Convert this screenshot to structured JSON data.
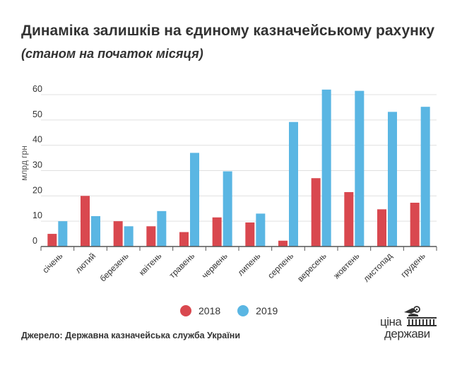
{
  "title": "Динаміка залишків на єдиному казначейському рахунку",
  "subtitle": "(станом на початок місяця)",
  "source": "Джерело: Державна казначейська служба України",
  "logo": {
    "line1": "ціна",
    "line2": "держави"
  },
  "colors": {
    "s2018": "#d9484f",
    "s2019": "#5ab6e3",
    "grid": "#e0e0e0",
    "axis": "#555555"
  },
  "chart_data": {
    "type": "bar",
    "title": "Динаміка залишків на єдиному казначейському рахунку",
    "subtitle": "(станом на початок місяця)",
    "ylabel": "млрд грн",
    "xlabel": "",
    "ylim": [
      0,
      60
    ],
    "yticks": [
      0,
      10,
      20,
      30,
      40,
      50,
      60
    ],
    "grid": true,
    "legend_position": "bottom",
    "categories": [
      "січень",
      "лютий",
      "березень",
      "квітень",
      "травень",
      "червень",
      "липень",
      "серпень",
      "вересень",
      "жовтень",
      "листопад",
      "грудень"
    ],
    "series": [
      {
        "name": "2018",
        "values": [
          5.0,
          20.0,
          10.0,
          8.0,
          5.7,
          11.5,
          9.5,
          2.3,
          27.0,
          21.5,
          14.7,
          17.3
        ]
      },
      {
        "name": "2019",
        "values": [
          10.0,
          12.0,
          8.0,
          14.0,
          37.0,
          29.7,
          13.0,
          49.2,
          62.0,
          61.5,
          53.2,
          55.2
        ]
      }
    ]
  }
}
